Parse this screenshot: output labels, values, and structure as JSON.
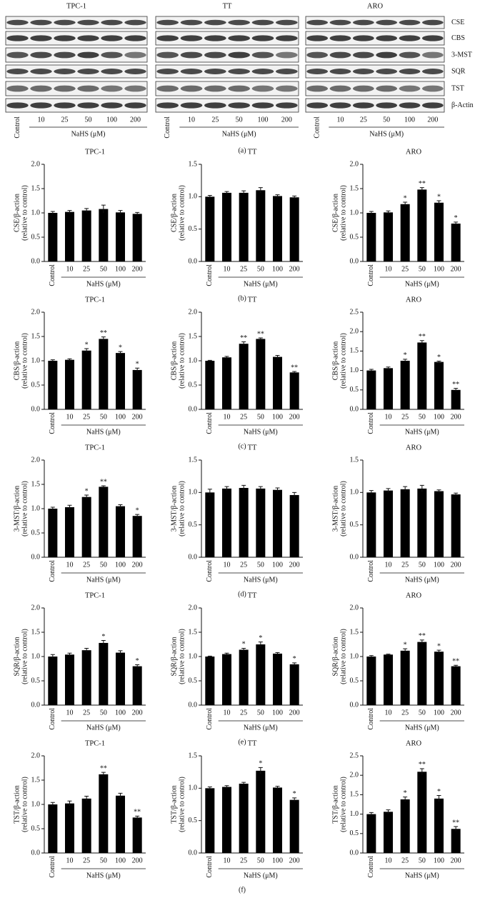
{
  "blot": {
    "columns": [
      "TPC-1",
      "TT",
      "ARO"
    ],
    "proteins": [
      "CSE",
      "CBS",
      "3-MST",
      "SQR",
      "TST",
      "β-Actin"
    ],
    "lanes": [
      "Control",
      "10",
      "25",
      "50",
      "100",
      "200"
    ],
    "x_label": "NaHS (μM)",
    "caption": "(a)"
  },
  "row_captions": [
    "(b)",
    "(c)",
    "(d)",
    "(e)",
    "(f)"
  ],
  "chart_data": [
    {
      "type": "bar",
      "title": "TPC-1",
      "y_label": [
        "CSE/β-action",
        "(relative to control)"
      ],
      "x_label": "NaHS (μM)",
      "categories": [
        "Control",
        "10",
        "25",
        "50",
        "100",
        "200"
      ],
      "values": [
        1.0,
        1.02,
        1.05,
        1.08,
        1.01,
        0.98
      ],
      "errors": [
        0.03,
        0.03,
        0.04,
        0.08,
        0.04,
        0.03
      ],
      "significance": [
        null,
        null,
        null,
        null,
        null,
        null
      ],
      "color": "#000000",
      "ylim": [
        0,
        2
      ],
      "yticks": [
        {
          "value": 0,
          "label": "0.0"
        },
        0.5,
        {
          "value": 1,
          "label": "1.0"
        },
        1.5,
        {
          "value": 2,
          "label": "2.0"
        }
      ]
    },
    {
      "type": "bar",
      "title": "TT",
      "y_label": [
        "CSE/β-action",
        "(relative to control)"
      ],
      "x_label": "NaHS (μM)",
      "categories": [
        "Control",
        "10",
        "25",
        "50",
        "100",
        "200"
      ],
      "values": [
        1.0,
        1.06,
        1.06,
        1.1,
        1.01,
        0.99
      ],
      "errors": [
        0.02,
        0.02,
        0.03,
        0.04,
        0.02,
        0.02
      ],
      "significance": [
        null,
        null,
        null,
        null,
        null,
        null
      ],
      "color": "#000000",
      "ylim": [
        0,
        1.5
      ],
      "yticks": [
        {
          "value": 0,
          "label": "0.0"
        },
        0.5,
        {
          "value": 1,
          "label": "1.0"
        },
        1.5
      ]
    },
    {
      "type": "bar",
      "title": "ARO",
      "y_label": [
        "CSE/β-action",
        "(relative to control)"
      ],
      "x_label": "NaHS (μM)",
      "categories": [
        "Control",
        "10",
        "25",
        "50",
        "100",
        "200"
      ],
      "values": [
        1.0,
        1.01,
        1.18,
        1.48,
        1.21,
        0.78
      ],
      "errors": [
        0.03,
        0.03,
        0.04,
        0.04,
        0.04,
        0.03
      ],
      "significance": [
        null,
        null,
        "*",
        "**",
        "*",
        "*"
      ],
      "color": "#000000",
      "ylim": [
        0,
        2
      ],
      "yticks": [
        {
          "value": 0,
          "label": "0.0"
        },
        0.5,
        {
          "value": 1,
          "label": "1.0"
        },
        1.5,
        {
          "value": 2,
          "label": "2.0"
        }
      ]
    },
    {
      "type": "bar",
      "title": "TPC-1",
      "y_label": [
        "CBS/β-action",
        "(relative to control)"
      ],
      "x_label": "NaHS (μM)",
      "categories": [
        "Control",
        "10",
        "25",
        "50",
        "100",
        "200"
      ],
      "values": [
        1.0,
        1.02,
        1.21,
        1.45,
        1.16,
        0.81
      ],
      "errors": [
        0.02,
        0.02,
        0.04,
        0.04,
        0.03,
        0.04
      ],
      "significance": [
        null,
        null,
        "*",
        "**",
        "*",
        "*"
      ],
      "color": "#000000",
      "ylim": [
        0,
        2
      ],
      "yticks": [
        {
          "value": 0,
          "label": "0.0"
        },
        0.5,
        {
          "value": 1,
          "label": "1.0"
        },
        1.5,
        {
          "value": 2,
          "label": "2.0"
        }
      ]
    },
    {
      "type": "bar",
      "title": "TT",
      "y_label": [
        "CBS/β-action",
        "(relative to control)"
      ],
      "x_label": "NaHS (μM)",
      "categories": [
        "Control",
        "10",
        "25",
        "50",
        "100",
        "200"
      ],
      "values": [
        1.0,
        1.07,
        1.35,
        1.45,
        1.08,
        0.76
      ],
      "errors": [
        0.01,
        0.02,
        0.04,
        0.02,
        0.03,
        0.02
      ],
      "significance": [
        null,
        null,
        "**",
        "**",
        null,
        "**"
      ],
      "color": "#000000",
      "ylim": [
        0,
        2
      ],
      "yticks": [
        {
          "value": 0,
          "label": "0.0"
        },
        0.5,
        {
          "value": 1,
          "label": "1.0"
        },
        1.5,
        {
          "value": 2,
          "label": "2.0"
        }
      ]
    },
    {
      "type": "bar",
      "title": "ARO",
      "y_label": [
        "CBS/β-action",
        "(relative to control)"
      ],
      "x_label": "NaHS (μM)",
      "categories": [
        "Control",
        "10",
        "25",
        "50",
        "100",
        "200"
      ],
      "values": [
        1.0,
        1.06,
        1.25,
        1.72,
        1.22,
        0.5
      ],
      "errors": [
        0.03,
        0.03,
        0.04,
        0.05,
        0.02,
        0.04
      ],
      "significance": [
        null,
        null,
        "*",
        "**",
        "*",
        "**"
      ],
      "color": "#000000",
      "ylim": [
        0,
        2.5
      ],
      "yticks": [
        {
          "value": 0,
          "label": "0.0"
        },
        0.5,
        {
          "value": 1,
          "label": "1.0"
        },
        1.5,
        {
          "value": 2,
          "label": "2.0"
        },
        2.5
      ]
    },
    {
      "type": "bar",
      "title": "TPC-1",
      "y_label": [
        "3-MST/β-action",
        "(relative to control)"
      ],
      "x_label": "NaHS (μM)",
      "categories": [
        "Control",
        "10",
        "25",
        "50",
        "100",
        "200"
      ],
      "values": [
        1.0,
        1.03,
        1.24,
        1.45,
        1.05,
        0.85
      ],
      "errors": [
        0.03,
        0.04,
        0.04,
        0.02,
        0.03,
        0.03
      ],
      "significance": [
        null,
        null,
        "*",
        "**",
        null,
        "*"
      ],
      "color": "#000000",
      "ylim": [
        0,
        2
      ],
      "yticks": [
        {
          "value": 0,
          "label": "0.0"
        },
        0.5,
        {
          "value": 1,
          "label": "1.0"
        },
        1.5,
        {
          "value": 2,
          "label": "2.0"
        }
      ]
    },
    {
      "type": "bar",
      "title": "TT",
      "y_label": [
        "3-MST/β-action",
        "(relative to control)"
      ],
      "x_label": "NaHS (μM)",
      "categories": [
        "Control",
        "10",
        "25",
        "50",
        "100",
        "200"
      ],
      "values": [
        1.0,
        1.06,
        1.07,
        1.06,
        1.04,
        0.96
      ],
      "errors": [
        0.05,
        0.03,
        0.04,
        0.03,
        0.03,
        0.04
      ],
      "significance": [
        null,
        null,
        null,
        null,
        null,
        null
      ],
      "color": "#000000",
      "ylim": [
        0,
        1.5
      ],
      "yticks": [
        {
          "value": 0,
          "label": "0.0"
        },
        0.5,
        {
          "value": 1,
          "label": "1.0"
        },
        1.5
      ]
    },
    {
      "type": "bar",
      "title": "ARO",
      "y_label": [
        "3-MST/β-action",
        "(relative to control)"
      ],
      "x_label": "NaHS (μM)",
      "categories": [
        "Control",
        "10",
        "25",
        "50",
        "100",
        "200"
      ],
      "values": [
        1.0,
        1.03,
        1.05,
        1.06,
        1.02,
        0.97
      ],
      "errors": [
        0.03,
        0.03,
        0.04,
        0.05,
        0.02,
        0.02
      ],
      "significance": [
        null,
        null,
        null,
        null,
        null,
        null
      ],
      "color": "#000000",
      "ylim": [
        0,
        1.5
      ],
      "yticks": [
        {
          "value": 0,
          "label": "0.0"
        },
        0.5,
        {
          "value": 1,
          "label": "1.0"
        },
        1.5
      ]
    },
    {
      "type": "bar",
      "title": "TPC-1",
      "y_label": [
        "SQR/β-action",
        "(relative to control)"
      ],
      "x_label": "NaHS (μM)",
      "categories": [
        "Control",
        "10",
        "25",
        "50",
        "100",
        "200"
      ],
      "values": [
        1.0,
        1.04,
        1.13,
        1.28,
        1.08,
        0.8
      ],
      "errors": [
        0.04,
        0.03,
        0.04,
        0.05,
        0.04,
        0.03
      ],
      "significance": [
        null,
        null,
        null,
        "*",
        null,
        "*"
      ],
      "color": "#000000",
      "ylim": [
        0,
        2
      ],
      "yticks": [
        {
          "value": 0,
          "label": "0.0"
        },
        0.5,
        {
          "value": 1,
          "label": "1.0"
        },
        1.5,
        {
          "value": 2,
          "label": "2.0"
        }
      ]
    },
    {
      "type": "bar",
      "title": "TT",
      "y_label": [
        "SQR/β-action",
        "(relative to control)"
      ],
      "x_label": "NaHS (μM)",
      "categories": [
        "Control",
        "10",
        "25",
        "50",
        "100",
        "200"
      ],
      "values": [
        1.0,
        1.05,
        1.14,
        1.25,
        1.06,
        0.84
      ],
      "errors": [
        0.01,
        0.02,
        0.03,
        0.05,
        0.02,
        0.03
      ],
      "significance": [
        null,
        null,
        "*",
        "*",
        null,
        "*"
      ],
      "color": "#000000",
      "ylim": [
        0,
        2
      ],
      "yticks": [
        {
          "value": 0,
          "label": "0.0"
        },
        0.5,
        {
          "value": 1,
          "label": "1.0"
        },
        1.5,
        {
          "value": 2,
          "label": "2.0"
        }
      ]
    },
    {
      "type": "bar",
      "title": "ARO",
      "y_label": [
        "SQR/β-action",
        "(relative to control)"
      ],
      "x_label": "NaHS (μM)",
      "categories": [
        "Control",
        "10",
        "25",
        "50",
        "100",
        "200"
      ],
      "values": [
        1.0,
        1.04,
        1.12,
        1.3,
        1.1,
        0.8
      ],
      "errors": [
        0.02,
        0.01,
        0.04,
        0.04,
        0.03,
        0.02
      ],
      "significance": [
        null,
        null,
        "*",
        "**",
        "*",
        "**"
      ],
      "color": "#000000",
      "ylim": [
        0,
        2
      ],
      "yticks": [
        {
          "value": 0,
          "label": "0.0"
        },
        0.5,
        {
          "value": 1,
          "label": "1.0"
        },
        1.5,
        {
          "value": 2,
          "label": "2.0"
        }
      ]
    },
    {
      "type": "bar",
      "title": "TPC-1",
      "y_label": [
        "TST/β-action",
        "(relative to control)"
      ],
      "x_label": "NaHS (μM)",
      "categories": [
        "Control",
        "10",
        "25",
        "50",
        "100",
        "200"
      ],
      "values": [
        1.0,
        1.02,
        1.12,
        1.62,
        1.18,
        0.73
      ],
      "errors": [
        0.04,
        0.05,
        0.05,
        0.04,
        0.05,
        0.03
      ],
      "significance": [
        null,
        null,
        null,
        "**",
        null,
        "**"
      ],
      "color": "#000000",
      "ylim": [
        0,
        2
      ],
      "yticks": [
        {
          "value": 0,
          "label": "0.0"
        },
        0.5,
        {
          "value": 1,
          "label": "1.0"
        },
        1.5,
        {
          "value": 2,
          "label": "2.0"
        }
      ]
    },
    {
      "type": "bar",
      "title": "TT",
      "y_label": [
        "TST/β-action",
        "(relative to control)"
      ],
      "x_label": "NaHS (μM)",
      "categories": [
        "Control",
        "10",
        "25",
        "50",
        "100",
        "200"
      ],
      "values": [
        1.0,
        1.02,
        1.07,
        1.27,
        1.01,
        0.82
      ],
      "errors": [
        0.02,
        0.02,
        0.02,
        0.05,
        0.02,
        0.03
      ],
      "significance": [
        null,
        null,
        null,
        "*",
        null,
        "*"
      ],
      "color": "#000000",
      "ylim": [
        0,
        1.5
      ],
      "yticks": [
        {
          "value": 0,
          "label": "0.0"
        },
        0.5,
        {
          "value": 1,
          "label": "1.0"
        },
        1.5
      ]
    },
    {
      "type": "bar",
      "title": "ARO",
      "y_label": [
        "TST/β-action",
        "(relative to control)"
      ],
      "x_label": "NaHS (μM)",
      "categories": [
        "Control",
        "10",
        "25",
        "50",
        "100",
        "200"
      ],
      "values": [
        1.0,
        1.06,
        1.38,
        2.09,
        1.4,
        0.62
      ],
      "errors": [
        0.04,
        0.05,
        0.06,
        0.08,
        0.08,
        0.06
      ],
      "significance": [
        null,
        null,
        "*",
        "**",
        "*",
        "**"
      ],
      "color": "#000000",
      "ylim": [
        0,
        2.5
      ],
      "yticks": [
        {
          "value": 0,
          "label": "0.0"
        },
        0.5,
        {
          "value": 1,
          "label": "1.0"
        },
        1.5,
        {
          "value": 2,
          "label": "2.0"
        },
        2.5
      ]
    }
  ]
}
